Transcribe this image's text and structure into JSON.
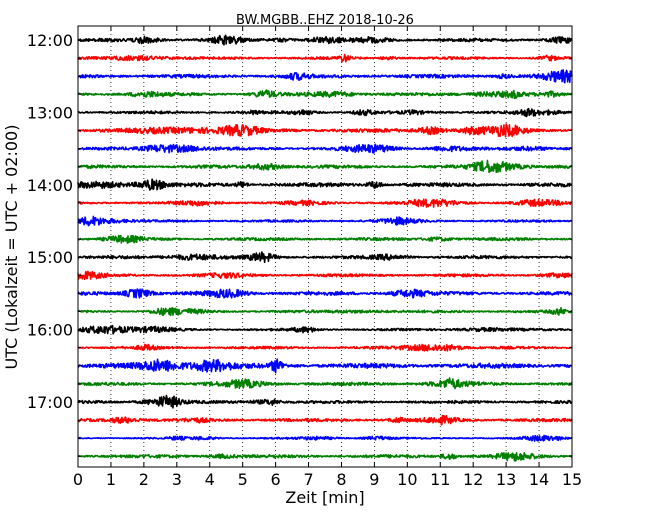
{
  "chart_data": {
    "type": "line",
    "title": "BW.MGBB..EHZ 2018-10-26",
    "xlabel": "Zeit  [min]",
    "ylabel": "UTC (Lokalzeit = UTC + 02:00)",
    "xlim": [
      0,
      15
    ],
    "x_ticks": [
      "0",
      "1",
      "2",
      "3",
      "4",
      "5",
      "6",
      "7",
      "8",
      "9",
      "10",
      "11",
      "12",
      "13",
      "14",
      "15"
    ],
    "y_tick_labels": [
      "12:00",
      "13:00",
      "14:00",
      "15:00",
      "16:00",
      "17:00"
    ],
    "grid": "vertical dotted",
    "series_colors": [
      "#000000",
      "#ff0000",
      "#0000ff",
      "#008000"
    ],
    "traces": [
      {
        "start": "12:00",
        "color": "#000000",
        "amplitude": 0.2
      },
      {
        "start": "12:15",
        "color": "#ff0000",
        "amplitude": 0.16
      },
      {
        "start": "12:30",
        "color": "#0000ff",
        "amplitude": 0.22
      },
      {
        "start": "12:45",
        "color": "#008000",
        "amplitude": 0.2
      },
      {
        "start": "13:00",
        "color": "#000000",
        "amplitude": 0.18
      },
      {
        "start": "13:15",
        "color": "#ff0000",
        "amplitude": 0.24
      },
      {
        "start": "13:30",
        "color": "#0000ff",
        "amplitude": 0.18
      },
      {
        "start": "13:45",
        "color": "#008000",
        "amplitude": 0.2
      },
      {
        "start": "14:00",
        "color": "#000000",
        "amplitude": 0.24
      },
      {
        "start": "14:15",
        "color": "#ff0000",
        "amplitude": 0.16
      },
      {
        "start": "14:30",
        "color": "#0000ff",
        "amplitude": 0.14
      },
      {
        "start": "14:45",
        "color": "#008000",
        "amplitude": 0.18
      },
      {
        "start": "15:00",
        "color": "#000000",
        "amplitude": 0.2
      },
      {
        "start": "15:15",
        "color": "#ff0000",
        "amplitude": 0.18
      },
      {
        "start": "15:30",
        "color": "#0000ff",
        "amplitude": 0.22
      },
      {
        "start": "15:45",
        "color": "#008000",
        "amplitude": 0.16
      },
      {
        "start": "16:00",
        "color": "#000000",
        "amplitude": 0.14
      },
      {
        "start": "16:15",
        "color": "#ff0000",
        "amplitude": 0.16
      },
      {
        "start": "16:30",
        "color": "#0000ff",
        "amplitude": 0.3
      },
      {
        "start": "16:45",
        "color": "#008000",
        "amplitude": 0.2
      },
      {
        "start": "17:00",
        "color": "#000000",
        "amplitude": 0.18
      },
      {
        "start": "17:15",
        "color": "#ff0000",
        "amplitude": 0.2
      },
      {
        "start": "17:30",
        "color": "#0000ff",
        "amplitude": 0.1
      },
      {
        "start": "17:45",
        "color": "#008000",
        "amplitude": 0.2
      }
    ]
  }
}
